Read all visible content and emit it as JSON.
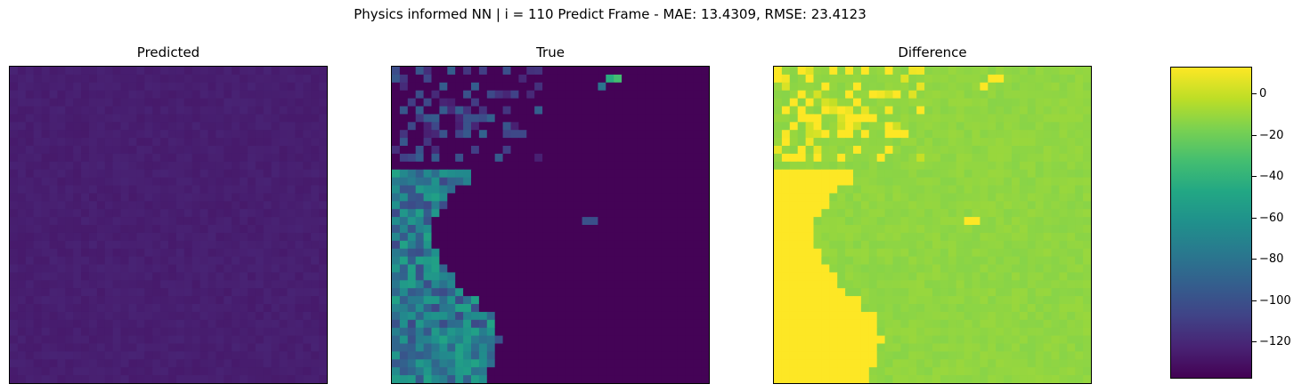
{
  "suptitle": "Physics informed NN | i = 110 Predict Frame - MAE: 13.4309, RMSE: 23.4123",
  "chart_data": {
    "type": "heatmap",
    "grid_size": [
      40,
      40
    ],
    "colormap": "viridis",
    "panels": [
      {
        "id": "predicted",
        "title": "Predicted",
        "description_value_range": [
          -130,
          -120
        ],
        "baseline": -125
      },
      {
        "id": "true",
        "title": "True",
        "baseline": -137
      },
      {
        "id": "difference",
        "title": "Difference",
        "baseline": 10
      }
    ],
    "colorbar": {
      "vmin": -138,
      "vmax": 13,
      "ticks": [
        0,
        -20,
        -40,
        -60,
        -80,
        -100,
        -120
      ],
      "tick_labels": [
        "0",
        "−20",
        "−40",
        "−60",
        "−80",
        "−100",
        "−120"
      ]
    }
  }
}
